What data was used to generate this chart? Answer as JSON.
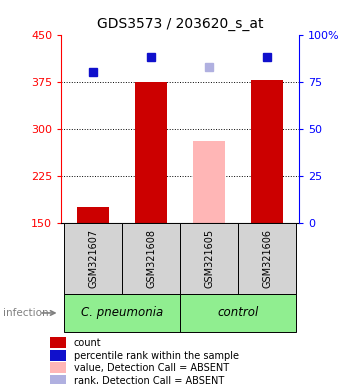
{
  "title": "GDS3573 / 203620_s_at",
  "samples": [
    "GSM321607",
    "GSM321608",
    "GSM321605",
    "GSM321606"
  ],
  "bar_values": [
    175,
    375,
    280,
    378
  ],
  "bar_colors": [
    "#cc0000",
    "#cc0000",
    "#ffb6b6",
    "#cc0000"
  ],
  "percentile_values": [
    80,
    88,
    83,
    88
  ],
  "percentile_colors": [
    "#1010cc",
    "#1010cc",
    "#b0b0e0",
    "#1010cc"
  ],
  "ylim_left": [
    150,
    450
  ],
  "ylim_right": [
    0,
    100
  ],
  "yticks_left": [
    150,
    225,
    300,
    375,
    450
  ],
  "yticks_right": [
    0,
    25,
    50,
    75,
    100
  ],
  "ytick_right_labels": [
    "0",
    "25",
    "50",
    "75",
    "100%"
  ],
  "grid_values": [
    225,
    300,
    375
  ],
  "sample_box_color": "#d3d3d3",
  "group_info": [
    {
      "label": "C. pneumonia",
      "indices": [
        0,
        1
      ],
      "color": "#90ee90"
    },
    {
      "label": "control",
      "indices": [
        2,
        3
      ],
      "color": "#90ee90"
    }
  ],
  "legend_items": [
    {
      "label": "count",
      "color": "#cc0000"
    },
    {
      "label": "percentile rank within the sample",
      "color": "#1010cc"
    },
    {
      "label": "value, Detection Call = ABSENT",
      "color": "#ffb6b6"
    },
    {
      "label": "rank, Detection Call = ABSENT",
      "color": "#b0b0e0"
    }
  ],
  "infection_label": "infection",
  "title_fontsize": 10,
  "tick_fontsize": 8,
  "sample_fontsize": 7,
  "group_fontsize": 8.5,
  "legend_fontsize": 7,
  "bar_width": 0.55
}
